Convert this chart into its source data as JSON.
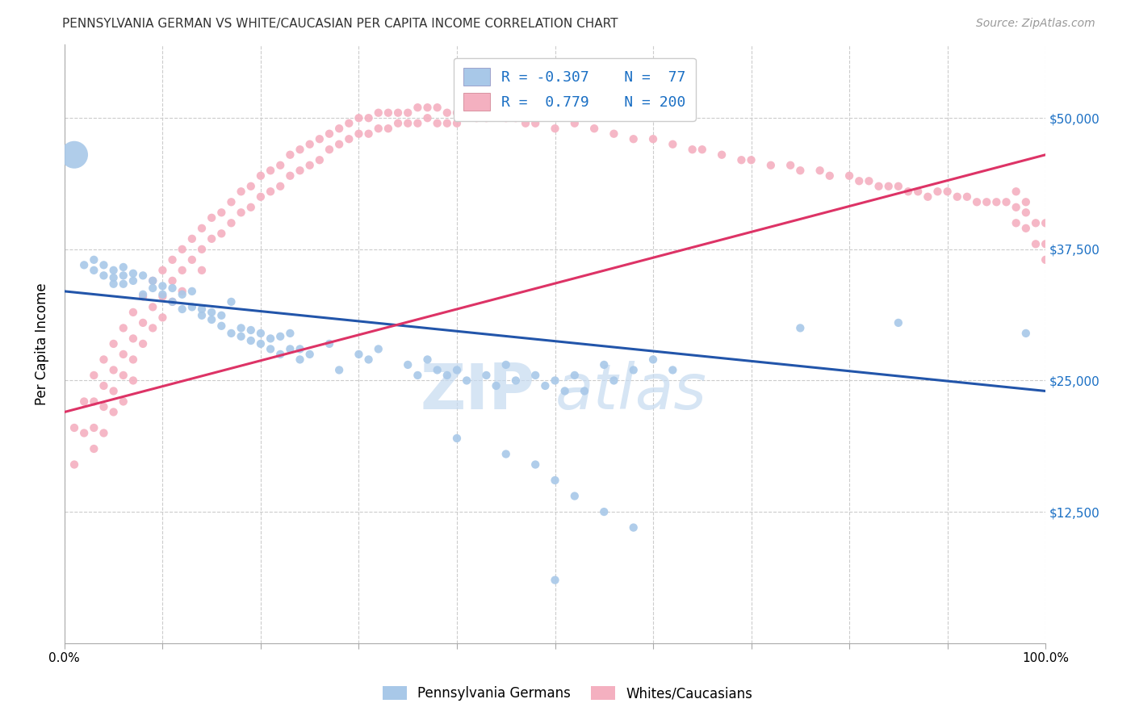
{
  "title": "PENNSYLVANIA GERMAN VS WHITE/CAUCASIAN PER CAPITA INCOME CORRELATION CHART",
  "source": "Source: ZipAtlas.com",
  "ylabel": "Per Capita Income",
  "xlim": [
    0,
    1
  ],
  "ylim": [
    0,
    57000
  ],
  "yticks": [
    12500,
    25000,
    37500,
    50000
  ],
  "ytick_labels": [
    "$12,500",
    "$25,000",
    "$37,500",
    "$50,000"
  ],
  "xtick_labels": [
    "0.0%",
    "100.0%"
  ],
  "legend_blue_R": "-0.307",
  "legend_blue_N": "77",
  "legend_pink_R": "0.779",
  "legend_pink_N": "200",
  "blue_color": "#a8c8e8",
  "pink_color": "#f4b0c0",
  "blue_line_color": "#2255aa",
  "pink_line_color": "#dd3366",
  "blue_scatter": [
    [
      0.01,
      46500
    ],
    [
      0.02,
      36000
    ],
    [
      0.03,
      36500
    ],
    [
      0.03,
      35500
    ],
    [
      0.04,
      36000
    ],
    [
      0.04,
      35000
    ],
    [
      0.05,
      35500
    ],
    [
      0.05,
      34800
    ],
    [
      0.05,
      34200
    ],
    [
      0.06,
      35800
    ],
    [
      0.06,
      35000
    ],
    [
      0.06,
      34200
    ],
    [
      0.07,
      35200
    ],
    [
      0.07,
      34500
    ],
    [
      0.08,
      35000
    ],
    [
      0.08,
      33200
    ],
    [
      0.09,
      34500
    ],
    [
      0.09,
      33800
    ],
    [
      0.1,
      34000
    ],
    [
      0.1,
      33200
    ],
    [
      0.11,
      33800
    ],
    [
      0.11,
      32500
    ],
    [
      0.12,
      33200
    ],
    [
      0.12,
      31800
    ],
    [
      0.13,
      33500
    ],
    [
      0.13,
      32000
    ],
    [
      0.14,
      31800
    ],
    [
      0.14,
      31200
    ],
    [
      0.15,
      31500
    ],
    [
      0.15,
      30800
    ],
    [
      0.16,
      31200
    ],
    [
      0.16,
      30200
    ],
    [
      0.17,
      32500
    ],
    [
      0.17,
      29500
    ],
    [
      0.18,
      30000
    ],
    [
      0.18,
      29200
    ],
    [
      0.19,
      29800
    ],
    [
      0.19,
      28800
    ],
    [
      0.2,
      29500
    ],
    [
      0.2,
      28500
    ],
    [
      0.21,
      29000
    ],
    [
      0.21,
      28000
    ],
    [
      0.22,
      29200
    ],
    [
      0.22,
      27500
    ],
    [
      0.23,
      29500
    ],
    [
      0.23,
      28000
    ],
    [
      0.24,
      28000
    ],
    [
      0.24,
      27000
    ],
    [
      0.25,
      27500
    ],
    [
      0.27,
      28500
    ],
    [
      0.28,
      26000
    ],
    [
      0.3,
      27500
    ],
    [
      0.31,
      27000
    ],
    [
      0.32,
      28000
    ],
    [
      0.35,
      26500
    ],
    [
      0.36,
      25500
    ],
    [
      0.37,
      27000
    ],
    [
      0.38,
      26000
    ],
    [
      0.39,
      25500
    ],
    [
      0.4,
      26000
    ],
    [
      0.41,
      25000
    ],
    [
      0.43,
      25500
    ],
    [
      0.44,
      24500
    ],
    [
      0.45,
      26500
    ],
    [
      0.46,
      25000
    ],
    [
      0.48,
      25500
    ],
    [
      0.49,
      24500
    ],
    [
      0.5,
      25000
    ],
    [
      0.51,
      24000
    ],
    [
      0.52,
      25500
    ],
    [
      0.53,
      24000
    ],
    [
      0.55,
      26500
    ],
    [
      0.56,
      25000
    ],
    [
      0.58,
      26000
    ],
    [
      0.6,
      27000
    ],
    [
      0.62,
      26000
    ],
    [
      0.75,
      30000
    ],
    [
      0.85,
      30500
    ],
    [
      0.98,
      29500
    ],
    [
      0.4,
      19500
    ],
    [
      0.45,
      18000
    ],
    [
      0.48,
      17000
    ],
    [
      0.5,
      15500
    ],
    [
      0.52,
      14000
    ],
    [
      0.55,
      12500
    ],
    [
      0.58,
      11000
    ],
    [
      0.5,
      6000
    ]
  ],
  "pink_scatter": [
    [
      0.01,
      20500
    ],
    [
      0.01,
      17000
    ],
    [
      0.02,
      23000
    ],
    [
      0.02,
      20000
    ],
    [
      0.03,
      25500
    ],
    [
      0.03,
      23000
    ],
    [
      0.03,
      20500
    ],
    [
      0.03,
      18500
    ],
    [
      0.04,
      27000
    ],
    [
      0.04,
      24500
    ],
    [
      0.04,
      22500
    ],
    [
      0.04,
      20000
    ],
    [
      0.05,
      28500
    ],
    [
      0.05,
      26000
    ],
    [
      0.05,
      24000
    ],
    [
      0.05,
      22000
    ],
    [
      0.06,
      30000
    ],
    [
      0.06,
      27500
    ],
    [
      0.06,
      25500
    ],
    [
      0.06,
      23000
    ],
    [
      0.07,
      31500
    ],
    [
      0.07,
      29000
    ],
    [
      0.07,
      27000
    ],
    [
      0.07,
      25000
    ],
    [
      0.08,
      33000
    ],
    [
      0.08,
      30500
    ],
    [
      0.08,
      28500
    ],
    [
      0.09,
      34500
    ],
    [
      0.09,
      32000
    ],
    [
      0.09,
      30000
    ],
    [
      0.1,
      35500
    ],
    [
      0.1,
      33000
    ],
    [
      0.1,
      31000
    ],
    [
      0.11,
      36500
    ],
    [
      0.11,
      34500
    ],
    [
      0.11,
      32500
    ],
    [
      0.12,
      37500
    ],
    [
      0.12,
      35500
    ],
    [
      0.12,
      33500
    ],
    [
      0.13,
      38500
    ],
    [
      0.13,
      36500
    ],
    [
      0.14,
      39500
    ],
    [
      0.14,
      37500
    ],
    [
      0.14,
      35500
    ],
    [
      0.15,
      40500
    ],
    [
      0.15,
      38500
    ],
    [
      0.16,
      41000
    ],
    [
      0.16,
      39000
    ],
    [
      0.17,
      42000
    ],
    [
      0.17,
      40000
    ],
    [
      0.18,
      43000
    ],
    [
      0.18,
      41000
    ],
    [
      0.19,
      43500
    ],
    [
      0.19,
      41500
    ],
    [
      0.2,
      44500
    ],
    [
      0.2,
      42500
    ],
    [
      0.21,
      45000
    ],
    [
      0.21,
      43000
    ],
    [
      0.22,
      45500
    ],
    [
      0.22,
      43500
    ],
    [
      0.23,
      46500
    ],
    [
      0.23,
      44500
    ],
    [
      0.24,
      47000
    ],
    [
      0.24,
      45000
    ],
    [
      0.25,
      47500
    ],
    [
      0.25,
      45500
    ],
    [
      0.26,
      48000
    ],
    [
      0.26,
      46000
    ],
    [
      0.27,
      48500
    ],
    [
      0.27,
      47000
    ],
    [
      0.28,
      49000
    ],
    [
      0.28,
      47500
    ],
    [
      0.29,
      49500
    ],
    [
      0.29,
      48000
    ],
    [
      0.3,
      50000
    ],
    [
      0.3,
      48500
    ],
    [
      0.31,
      50000
    ],
    [
      0.31,
      48500
    ],
    [
      0.32,
      50500
    ],
    [
      0.32,
      49000
    ],
    [
      0.33,
      50500
    ],
    [
      0.33,
      49000
    ],
    [
      0.34,
      50500
    ],
    [
      0.34,
      49500
    ],
    [
      0.35,
      50500
    ],
    [
      0.35,
      49500
    ],
    [
      0.36,
      51000
    ],
    [
      0.36,
      49500
    ],
    [
      0.37,
      51000
    ],
    [
      0.37,
      50000
    ],
    [
      0.38,
      51000
    ],
    [
      0.38,
      49500
    ],
    [
      0.39,
      50500
    ],
    [
      0.39,
      49500
    ],
    [
      0.4,
      50500
    ],
    [
      0.4,
      49500
    ],
    [
      0.41,
      50500
    ],
    [
      0.42,
      50000
    ],
    [
      0.43,
      50000
    ],
    [
      0.44,
      50500
    ],
    [
      0.45,
      50000
    ],
    [
      0.46,
      50000
    ],
    [
      0.47,
      49500
    ],
    [
      0.48,
      49500
    ],
    [
      0.5,
      49000
    ],
    [
      0.52,
      49500
    ],
    [
      0.54,
      49000
    ],
    [
      0.56,
      48500
    ],
    [
      0.58,
      48000
    ],
    [
      0.6,
      48000
    ],
    [
      0.62,
      47500
    ],
    [
      0.64,
      47000
    ],
    [
      0.65,
      47000
    ],
    [
      0.67,
      46500
    ],
    [
      0.69,
      46000
    ],
    [
      0.7,
      46000
    ],
    [
      0.72,
      45500
    ],
    [
      0.74,
      45500
    ],
    [
      0.75,
      45000
    ],
    [
      0.77,
      45000
    ],
    [
      0.78,
      44500
    ],
    [
      0.8,
      44500
    ],
    [
      0.81,
      44000
    ],
    [
      0.82,
      44000
    ],
    [
      0.83,
      43500
    ],
    [
      0.84,
      43500
    ],
    [
      0.85,
      43500
    ],
    [
      0.86,
      43000
    ],
    [
      0.87,
      43000
    ],
    [
      0.88,
      42500
    ],
    [
      0.89,
      43000
    ],
    [
      0.9,
      43000
    ],
    [
      0.91,
      42500
    ],
    [
      0.92,
      42500
    ],
    [
      0.93,
      42000
    ],
    [
      0.94,
      42000
    ],
    [
      0.95,
      42000
    ],
    [
      0.96,
      42000
    ],
    [
      0.97,
      41500
    ],
    [
      0.97,
      43000
    ],
    [
      0.97,
      40000
    ],
    [
      0.98,
      41000
    ],
    [
      0.98,
      39500
    ],
    [
      0.98,
      42000
    ],
    [
      0.99,
      40000
    ],
    [
      0.99,
      38000
    ],
    [
      1.0,
      40000
    ],
    [
      1.0,
      38000
    ],
    [
      1.0,
      36500
    ]
  ],
  "blue_line_x": [
    0.0,
    1.0
  ],
  "blue_line_y": [
    33500,
    24000
  ],
  "pink_line_x": [
    0.0,
    1.0
  ],
  "pink_line_y": [
    22000,
    46500
  ],
  "watermark_zip": "ZIP",
  "watermark_atlas": "atlas",
  "bg_color": "#ffffff",
  "grid_color": "#cccccc"
}
